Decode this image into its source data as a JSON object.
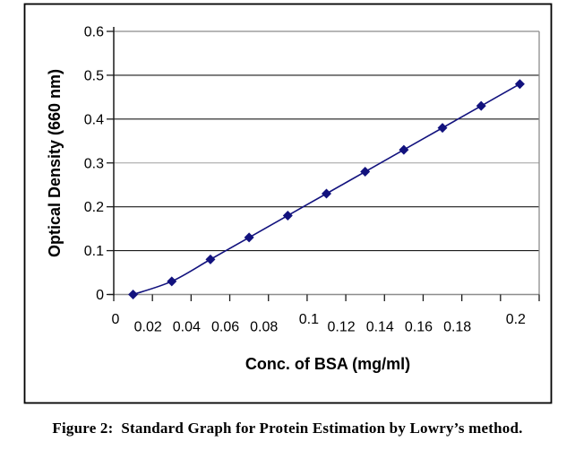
{
  "figure": {
    "caption": "Figure 2:  Standard Graph for Protein Estimation by Lowry’s method."
  },
  "chart_data": {
    "type": "line",
    "title": "",
    "xlabel": "Conc. of BSA (mg/ml)",
    "ylabel": "Optical Density (660 nm)",
    "categories": [
      "0",
      "0.02",
      "0.04",
      "0.06",
      "0.08",
      "0.1",
      "0.12",
      "0.14",
      "0.16",
      "0.18",
      "0.2"
    ],
    "values": [
      0,
      0.03,
      0.08,
      0.13,
      0.18,
      0.23,
      0.28,
      0.33,
      0.38,
      0.43,
      0.48
    ],
    "y_ticks": [
      "0",
      "0.1",
      "0.2",
      "0.3",
      "0.4",
      "0.5",
      "0.6"
    ],
    "ylim": [
      0,
      0.6
    ],
    "grid": "horizontal",
    "legend": "none",
    "marker": "diamond",
    "line_smoothed": true,
    "raised_x_label_indices": [
      0,
      5,
      10
    ],
    "light_gridline_values": [
      0.3
    ],
    "colors": {
      "series": "#12127e",
      "gridline": "#1a1a1a",
      "gridline_light": "#9f9f9f",
      "plot_frame": "#8c8c8c",
      "chart_border": "#000000",
      "text": "#000000"
    }
  }
}
